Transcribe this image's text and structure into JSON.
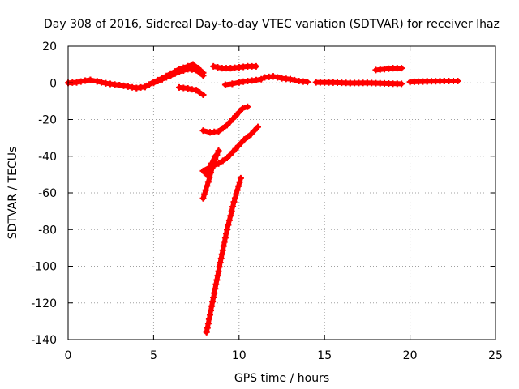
{
  "chart_data": {
    "type": "scatter",
    "title": "Day 308 of 2016, Sidereal Day-to-day VTEC variation (SDTVAR) for receiver lhaz",
    "xlabel": "GPS time / hours",
    "ylabel": "SDTVAR / TECUs",
    "xlim": [
      0,
      25
    ],
    "ylim": [
      -140,
      20
    ],
    "xticks": [
      0,
      5,
      10,
      15,
      20,
      25
    ],
    "yticks": [
      20,
      0,
      -20,
      -40,
      -60,
      -80,
      -100,
      -120,
      -140
    ],
    "grid": true,
    "marker": "+",
    "color": "#ff0000",
    "series": [
      {
        "name": "s1",
        "points": [
          [
            0,
            0
          ],
          [
            0.5,
            0.3
          ],
          [
            1,
            1.2
          ],
          [
            1.3,
            1.6
          ],
          [
            1.7,
            0.8
          ],
          [
            2.2,
            -0.2
          ],
          [
            3,
            -1.2
          ],
          [
            3.5,
            -2
          ],
          [
            4,
            -2.8
          ],
          [
            4.5,
            -2.2
          ],
          [
            5,
            0.5
          ],
          [
            5.5,
            2.5
          ],
          [
            6,
            5
          ],
          [
            6.5,
            7.5
          ],
          [
            7,
            9
          ],
          [
            7.3,
            10
          ],
          [
            7.6,
            8
          ],
          [
            7.9,
            5.5
          ]
        ]
      },
      {
        "name": "s2",
        "points": [
          [
            5,
            0
          ],
          [
            5.5,
            2
          ],
          [
            6,
            4
          ],
          [
            6.5,
            6
          ],
          [
            7,
            7.5
          ],
          [
            7.5,
            7
          ],
          [
            7.9,
            4
          ]
        ]
      },
      {
        "name": "s3",
        "points": [
          [
            6.5,
            -2.5
          ],
          [
            7,
            -3
          ],
          [
            7.5,
            -4
          ],
          [
            7.9,
            -6.5
          ]
        ]
      },
      {
        "name": "s4",
        "points": [
          [
            8.5,
            9
          ],
          [
            9,
            8
          ],
          [
            9.5,
            8
          ],
          [
            10,
            8.5
          ],
          [
            10.5,
            9
          ],
          [
            11,
            9
          ]
        ]
      },
      {
        "name": "s5",
        "points": [
          [
            9.2,
            -1
          ],
          [
            9.6,
            -0.5
          ],
          [
            10,
            0.3
          ],
          [
            10.5,
            1
          ],
          [
            11,
            1.5
          ],
          [
            11.3,
            2
          ]
        ]
      },
      {
        "name": "s6",
        "points": [
          [
            11.5,
            3
          ],
          [
            12,
            3.5
          ],
          [
            12.5,
            2.5
          ],
          [
            13,
            2
          ],
          [
            13.5,
            1
          ],
          [
            14,
            0.5
          ]
        ]
      },
      {
        "name": "s7",
        "points": [
          [
            14.5,
            0.3
          ],
          [
            15.5,
            0.2
          ],
          [
            16.5,
            -0.1
          ],
          [
            17.5,
            0
          ],
          [
            18.5,
            -0.3
          ],
          [
            19.5,
            -0.5
          ]
        ]
      },
      {
        "name": "s8",
        "points": [
          [
            18,
            7
          ],
          [
            18.5,
            7.5
          ],
          [
            19,
            8
          ],
          [
            19.5,
            8
          ]
        ]
      },
      {
        "name": "s9",
        "points": [
          [
            20,
            0.5
          ],
          [
            21,
            0.8
          ],
          [
            22,
            1
          ],
          [
            22.8,
            1
          ]
        ]
      },
      {
        "name": "s10",
        "points": [
          [
            7.9,
            -26
          ],
          [
            8.3,
            -27
          ],
          [
            8.8,
            -26.5
          ],
          [
            9.3,
            -23
          ],
          [
            9.8,
            -18
          ],
          [
            10.2,
            -14
          ],
          [
            10.5,
            -13
          ]
        ]
      },
      {
        "name": "s11",
        "points": [
          [
            7.9,
            -48
          ],
          [
            8.3,
            -46
          ],
          [
            8.8,
            -44
          ],
          [
            9.3,
            -41
          ],
          [
            9.8,
            -36
          ],
          [
            10.3,
            -31
          ],
          [
            10.7,
            -28
          ],
          [
            11.1,
            -24
          ]
        ]
      },
      {
        "name": "s12",
        "points": [
          [
            7.9,
            -63
          ],
          [
            8.2,
            -54
          ],
          [
            8.5,
            -44
          ],
          [
            8.8,
            -37
          ]
        ]
      },
      {
        "name": "s13",
        "points": [
          [
            8.1,
            -50
          ],
          [
            8.4,
            -44
          ],
          [
            8.6,
            -40
          ]
        ]
      },
      {
        "name": "s14",
        "points": [
          [
            8.1,
            -136
          ],
          [
            8.5,
            -117
          ],
          [
            8.9,
            -98
          ],
          [
            9.3,
            -80
          ],
          [
            9.7,
            -65
          ],
          [
            10.1,
            -52
          ]
        ]
      }
    ]
  }
}
